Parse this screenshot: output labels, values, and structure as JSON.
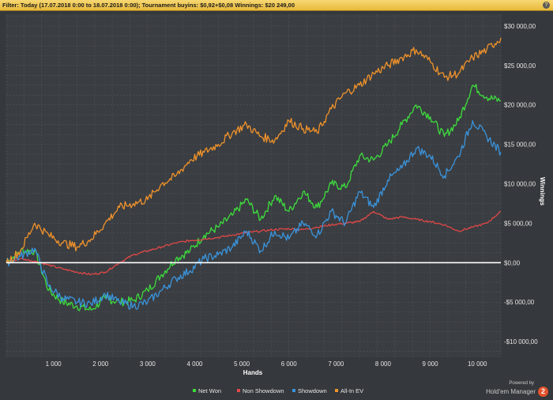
{
  "filter_bar": {
    "text": "Filter: Today (17.07.2018 0:00 to 18.07.2018 0:00); Tournament buyins: $0,92+$0,08 Winnings: $20 249,00",
    "help_icon": "help-icon"
  },
  "branding": {
    "powered_by": "Powered by",
    "product": "Hold'em Manager",
    "logo_text": "2",
    "logo_color": "#e2522c"
  },
  "chart_data": {
    "type": "line",
    "title": "",
    "xlabel": "Hands",
    "ylabel": "Winnings",
    "xlim": [
      0,
      10500
    ],
    "ylim": [
      -12000,
      31500
    ],
    "x_ticks": [
      1000,
      2000,
      3000,
      4000,
      5000,
      6000,
      7000,
      8000,
      9000,
      10000
    ],
    "x_tick_labels": [
      "1 000",
      "2 000",
      "3 000",
      "4 000",
      "5 000",
      "6 000",
      "7 000",
      "8 000",
      "9 000",
      "10 000"
    ],
    "y_ticks": [
      -10000,
      -5000,
      0,
      5000,
      10000,
      15000,
      20000,
      25000,
      30000
    ],
    "y_tick_labels": [
      "-$10 000,00",
      "-$5 000,00",
      "$0,00",
      "$5 000,00",
      "$10 000,00",
      "$15 000,00",
      "$20 000,00",
      "$25 000,00",
      "$30 000,00"
    ],
    "grid": true,
    "legend_position": "bottom-center",
    "zero_line_color": "#ffffff",
    "series": [
      {
        "name": "Net Won",
        "color": "#3ddc3d",
        "x": [
          0,
          300,
          600,
          900,
          1200,
          1500,
          1800,
          2100,
          2400,
          2700,
          3000,
          3300,
          3600,
          3900,
          4200,
          4500,
          4800,
          5100,
          5400,
          5700,
          6000,
          6300,
          6600,
          6900,
          7200,
          7500,
          7800,
          8100,
          8400,
          8700,
          9000,
          9300,
          9600,
          9900,
          10200,
          10500
        ],
        "y": [
          0,
          1500,
          1500,
          -3500,
          -5000,
          -5500,
          -6000,
          -4500,
          -5000,
          -4800,
          -3500,
          -1500,
          500,
          1500,
          3500,
          4500,
          6000,
          8000,
          5500,
          8500,
          6500,
          9000,
          7000,
          10000,
          9500,
          13500,
          13000,
          15000,
          17500,
          20000,
          18500,
          16000,
          18000,
          22500,
          21000,
          20500
        ]
      },
      {
        "name": "Non Showdown",
        "color": "#e04848",
        "x": [
          0,
          300,
          600,
          900,
          1200,
          1500,
          1800,
          2100,
          2400,
          2700,
          3000,
          3300,
          3600,
          3900,
          4200,
          4500,
          4800,
          5100,
          5400,
          5700,
          6000,
          6300,
          6600,
          6900,
          7200,
          7500,
          7800,
          8100,
          8400,
          8700,
          9000,
          9300,
          9600,
          9900,
          10200,
          10500
        ],
        "y": [
          0,
          500,
          200,
          -300,
          -800,
          -1200,
          -1500,
          -1200,
          0,
          1000,
          1500,
          2000,
          2500,
          2800,
          3000,
          3200,
          3500,
          3800,
          4000,
          4200,
          4300,
          4200,
          4500,
          4800,
          5000,
          5200,
          6500,
          5500,
          5800,
          5500,
          5200,
          4800,
          4000,
          4500,
          5000,
          6500
        ]
      },
      {
        "name": "Showdown",
        "color": "#3a93db",
        "x": [
          0,
          300,
          600,
          900,
          1200,
          1500,
          1800,
          2100,
          2400,
          2700,
          3000,
          3300,
          3600,
          3900,
          4200,
          4500,
          4800,
          5100,
          5400,
          5700,
          6000,
          6300,
          6600,
          6900,
          7200,
          7500,
          7800,
          8100,
          8400,
          8700,
          9000,
          9300,
          9600,
          9900,
          10200,
          10500
        ],
        "y": [
          0,
          800,
          1800,
          -3000,
          -4500,
          -5000,
          -5200,
          -4000,
          -5000,
          -5500,
          -5000,
          -3500,
          -2000,
          -1000,
          500,
          1000,
          2000,
          4000,
          1500,
          4000,
          3000,
          5000,
          3500,
          6500,
          5000,
          9000,
          7000,
          10500,
          12000,
          14500,
          13500,
          11000,
          13500,
          18000,
          16000,
          14000
        ]
      },
      {
        "name": "All-In EV",
        "color": "#f0922b",
        "x": [
          0,
          300,
          600,
          900,
          1200,
          1500,
          1800,
          2100,
          2400,
          2700,
          3000,
          3300,
          3600,
          3900,
          4200,
          4500,
          4800,
          5100,
          5400,
          5700,
          6000,
          6300,
          6600,
          6900,
          7200,
          7500,
          7800,
          8100,
          8400,
          8700,
          9000,
          9300,
          9600,
          9900,
          10200,
          10500
        ],
        "y": [
          0,
          1500,
          5000,
          3500,
          2500,
          2000,
          3000,
          5000,
          7000,
          7500,
          8000,
          10000,
          11000,
          13000,
          14000,
          15000,
          16500,
          17500,
          16000,
          15500,
          18000,
          17000,
          16500,
          19500,
          21500,
          22500,
          24000,
          25000,
          26000,
          27000,
          25500,
          23500,
          24000,
          26000,
          27000,
          28500
        ]
      }
    ]
  }
}
